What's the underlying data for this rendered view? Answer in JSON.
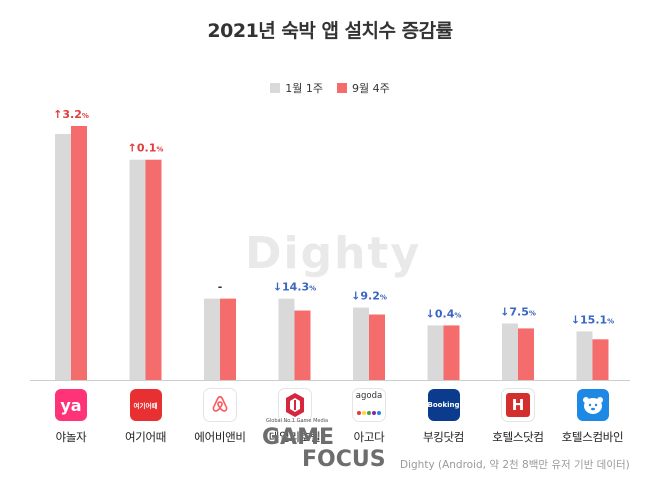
{
  "title": "2021년 숙박 앱 설치수 증감률",
  "legend": [
    {
      "label": "1월 1주",
      "color": "#d9d9d9"
    },
    {
      "label": "9월 4주",
      "color": "#f46c6c"
    }
  ],
  "watermark": "Dighty",
  "source": "Dighty (Android, 약 2천 8백만 유저 기반 데이터)",
  "logo": {
    "tagline": "Global No.1 Game Media",
    "word1": "GAME",
    "word2": "FOCUS"
  },
  "colors": {
    "up": "#e03c3c",
    "down": "#3a66c4",
    "neutral": "#333333",
    "axis": "#cccccc"
  },
  "apps": [
    {
      "name": "야놀자",
      "icon": "yanolja-icon",
      "icon_text": "ya",
      "icon_bg": "#ff3478",
      "icon_fg": "#ffffff"
    },
    {
      "name": "여기어때",
      "icon": "yeogi-icon",
      "icon_text": "여기어때",
      "icon_bg": "#e82f32",
      "icon_fg": "#ffffff"
    },
    {
      "name": "에어비앤비",
      "icon": "airbnb-icon",
      "icon_text": "",
      "icon_bg": "#ffffff",
      "icon_fg": "#ff5a5f"
    },
    {
      "name": "데일리호텔",
      "icon": "dailyhotel-icon",
      "icon_text": "",
      "icon_bg": "#ffffff",
      "icon_fg": "#d7263d"
    },
    {
      "name": "아고다",
      "icon": "agoda-icon",
      "icon_text": "agoda",
      "icon_bg": "#ffffff",
      "icon_fg": "#333333"
    },
    {
      "name": "부킹닷컴",
      "icon": "booking-icon",
      "icon_text": "Booking",
      "icon_bg": "#0b3b8c",
      "icon_fg": "#ffffff"
    },
    {
      "name": "호텔스닷컴",
      "icon": "hotelscom-icon",
      "icon_text": "H",
      "icon_bg": "#ffffff",
      "icon_fg": "#d32f2f"
    },
    {
      "name": "호텔스컴바인",
      "icon": "hotelscombined-icon",
      "icon_text": "",
      "icon_bg": "#1e88e5",
      "icon_fg": "#ffffff"
    }
  ],
  "chart_data": {
    "type": "bar",
    "title": "2021년 숙박 앱 설치수 증감률",
    "categories": [
      "야놀자",
      "여기어때",
      "에어비앤비",
      "데일리호텔",
      "아고다",
      "부킹닷컴",
      "호텔스닷컴",
      "호텔스컴바인"
    ],
    "series": [
      {
        "name": "1월 1주",
        "values": [
          248,
          222,
          82,
          82,
          73,
          55,
          57,
          49
        ]
      },
      {
        "name": "9월 4주",
        "values": [
          256,
          222,
          82,
          70,
          66,
          55,
          52,
          41
        ]
      }
    ],
    "change_labels": [
      {
        "direction": "up",
        "value": "3.2",
        "unit": "%"
      },
      {
        "direction": "up",
        "value": "0.1",
        "unit": "%"
      },
      {
        "direction": "none",
        "value": "-",
        "unit": ""
      },
      {
        "direction": "down",
        "value": "14.3",
        "unit": "%"
      },
      {
        "direction": "down",
        "value": "9.2",
        "unit": "%"
      },
      {
        "direction": "down",
        "value": "0.4",
        "unit": "%"
      },
      {
        "direction": "down",
        "value": "7.5",
        "unit": "%"
      },
      {
        "direction": "down",
        "value": "15.1",
        "unit": "%"
      }
    ],
    "ylim": [
      0,
      260
    ],
    "legend_position": "top-center",
    "grid": false,
    "y_axis_visible": false
  }
}
